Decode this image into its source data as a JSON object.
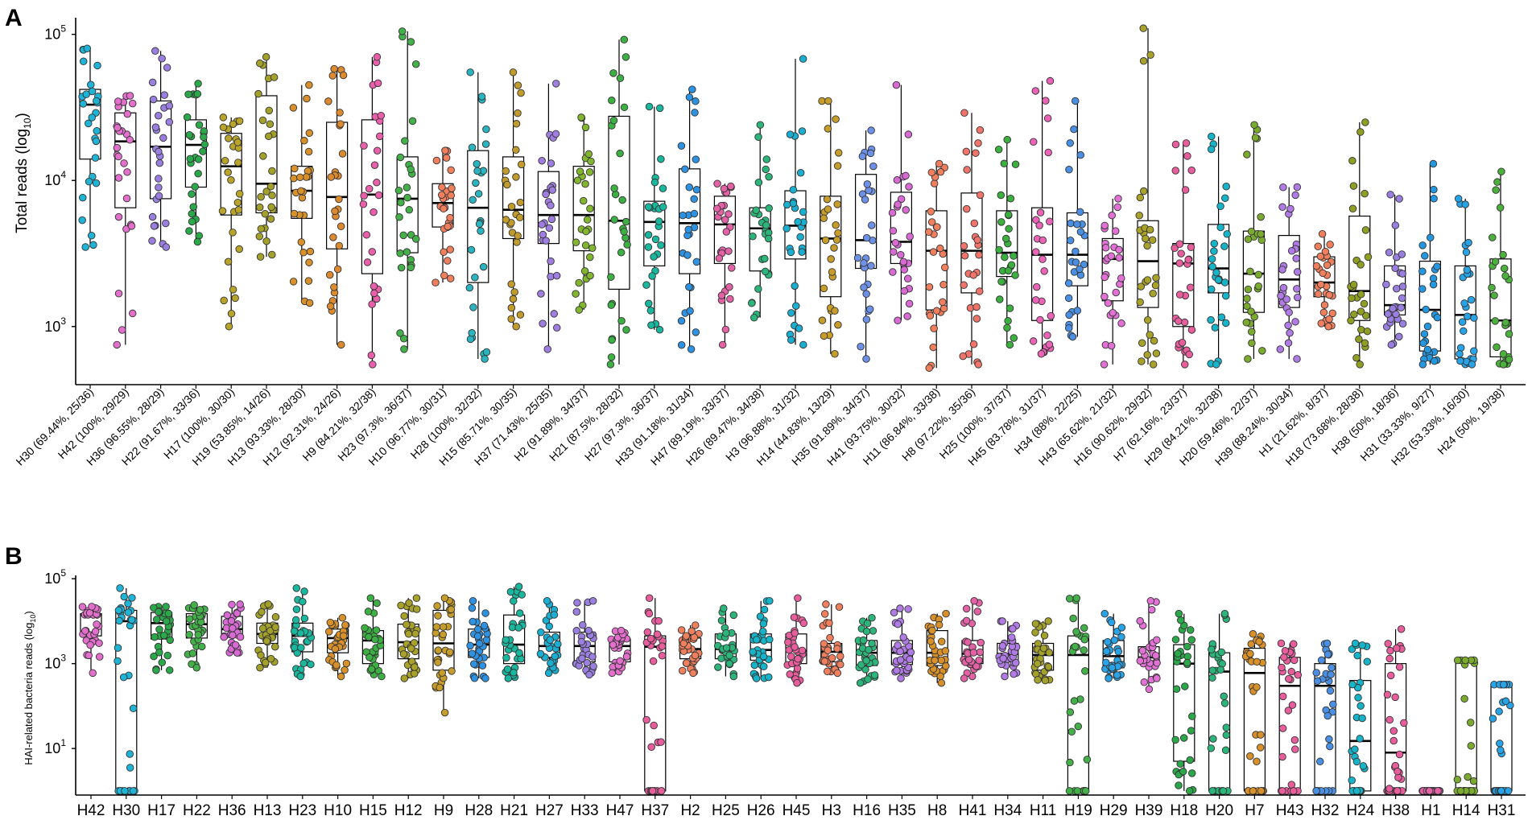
{
  "figure": {
    "panels": [
      "A",
      "B"
    ]
  },
  "chart_data": [
    {
      "panel": "A",
      "type": "box",
      "ylabel": "Total reads (log",
      "ylabel_sub": "10",
      "ylabel_tail": ")",
      "yscale": "log10",
      "ylim": [
        400,
        130000
      ],
      "yticks": [
        {
          "value": 1000,
          "base": "10",
          "exp": "3"
        },
        {
          "value": 10000,
          "base": "10",
          "exp": "4"
        },
        {
          "value": 100000,
          "base": "10",
          "exp": "5"
        }
      ],
      "categories": [
        "H30 (69.44%, 25/36)",
        "H42 (100%, 29/29)",
        "H36 (96.55%, 28/29)",
        "H22 (91.67%, 33/36)",
        "H17 (100%, 30/30)",
        "H19 (53.85%, 14/26)",
        "H13 (93.33%, 28/30)",
        "H12 (92.31%, 24/26)",
        "H9 (84.21%, 32/38)",
        "H23 (97.3%, 36/37)",
        "H10 (96.77%, 30/31)",
        "H28 (100%, 32/32)",
        "H15 (85.71%, 30/35)",
        "H37 (71.43%, 25/35)",
        "H2 (91.89%, 34/37)",
        "H21 (87.5%, 28/32)",
        "H27 (97.3%, 36/37)",
        "H33 (91.18%, 31/34)",
        "H47 (89.19%, 33/37)",
        "H26 (89.47%, 34/38)",
        "H3 (96.88%, 31/32)",
        "H14 (44.83%, 13/29)",
        "H35 (91.89%, 34/37)",
        "H41 (93.75%, 30/32)",
        "H11 (86.84%, 33/38)",
        "H8 (97.22%, 35/36)",
        "H25 (100%, 37/37)",
        "H45 (83.78%, 31/37)",
        "H34 (88%, 22/25)",
        "H43 (65.62%, 21/32)",
        "H16 (90.62%, 29/32)",
        "H7 (62.16%, 23/37)",
        "H29 (84.21%, 32/38)",
        "H20 (59.46%, 22/37)",
        "H39 (88.24%, 30/34)",
        "H1 (21.62%, 8/37)",
        "H18 (73.68%, 28/38)",
        "H38 (50%, 18/36)",
        "H31 (33.33%, 9/27)",
        "H32 (53.33%, 16/30)",
        "H24 (50%, 19/38)"
      ],
      "colors": [
        "#1fb3d6",
        "#e36fcc",
        "#9a7fe0",
        "#2aa84a",
        "#b8a42a",
        "#a4a12b",
        "#d8912a",
        "#dc8a30",
        "#ea5fab",
        "#43b04a",
        "#f07f5e",
        "#29b4c0",
        "#c19b2b",
        "#a07de0",
        "#82b62f",
        "#3db044",
        "#18b79e",
        "#2e92e2",
        "#e362a6",
        "#2bb57a",
        "#1aaed0",
        "#c69d2a",
        "#6e91e8",
        "#d86ad3",
        "#f07f5e",
        "#f0746a",
        "#3bb03f",
        "#eb63b6",
        "#4a8fe2",
        "#e271d6",
        "#a8a12a",
        "#e85d9c",
        "#16b4c8",
        "#7bab2e",
        "#b07be4",
        "#f07f5e",
        "#8f9f24",
        "#9a7fe0",
        "#2397e0",
        "#28a3e6",
        "#4cb03d"
      ],
      "series": [
        {
          "q1": 14000,
          "median": 33000,
          "q3": 42000,
          "whisker_low": 3500,
          "whisker_high": 80000
        },
        {
          "q1": 6500,
          "median": 18500,
          "q3": 29000,
          "whisker_low": 750,
          "whisker_high": 38000
        },
        {
          "q1": 7500,
          "median": 17000,
          "q3": 35000,
          "whisker_low": 3500,
          "whisker_high": 77000
        },
        {
          "q1": 9000,
          "median": 17500,
          "q3": 26000,
          "whisker_low": 3800,
          "whisker_high": 46000
        },
        {
          "q1": 5800,
          "median": 12500,
          "q3": 21000,
          "whisker_low": 1000,
          "whisker_high": 27000
        },
        {
          "q1": 6000,
          "median": 9500,
          "q3": 38000,
          "whisker_low": 3000,
          "whisker_high": 70000
        },
        {
          "q1": 5500,
          "median": 8500,
          "q3": 12500,
          "whisker_low": 1450,
          "whisker_high": 45000
        },
        {
          "q1": 3400,
          "median": 7700,
          "q3": 25000,
          "whisker_low": 750,
          "whisker_high": 58000
        },
        {
          "q1": 2300,
          "median": 8000,
          "q3": 26000,
          "whisker_low": 550,
          "whisker_high": 70000
        },
        {
          "q1": 3200,
          "median": 7500,
          "q3": 14500,
          "whisker_low": 700,
          "whisker_high": 105000
        },
        {
          "q1": 4800,
          "median": 7000,
          "q3": 9500,
          "whisker_low": 2000,
          "whisker_high": 16000
        },
        {
          "q1": 2000,
          "median": 6500,
          "q3": 16000,
          "whisker_low": 600,
          "whisker_high": 55000
        },
        {
          "q1": 4000,
          "median": 6300,
          "q3": 14500,
          "whisker_low": 1000,
          "whisker_high": 55000
        },
        {
          "q1": 3700,
          "median": 5800,
          "q3": 11500,
          "whisker_low": 700,
          "whisker_high": 46000
        },
        {
          "q1": 3300,
          "median": 5800,
          "q3": 12500,
          "whisker_low": 1300,
          "whisker_high": 27000
        },
        {
          "q1": 1800,
          "median": 5300,
          "q3": 27500,
          "whisker_low": 550,
          "whisker_high": 92000
        },
        {
          "q1": 2600,
          "median": 5200,
          "q3": 7200,
          "whisker_low": 950,
          "whisker_high": 32000
        },
        {
          "q1": 2300,
          "median": 5100,
          "q3": 12000,
          "whisker_low": 700,
          "whisker_high": 42000
        },
        {
          "q1": 2700,
          "median": 5000,
          "q3": 7800,
          "whisker_low": 750,
          "whisker_high": 9500
        },
        {
          "q1": 2400,
          "median": 4700,
          "q3": 6500,
          "whisker_low": 1150,
          "whisker_high": 24000
        },
        {
          "q1": 2900,
          "median": 4900,
          "q3": 8500,
          "whisker_low": 750,
          "whisker_high": 68000
        },
        {
          "q1": 1600,
          "median": 4000,
          "q3": 7800,
          "whisker_low": 650,
          "whisker_high": 35000
        },
        {
          "q1": 2500,
          "median": 3900,
          "q3": 11000,
          "whisker_low": 600,
          "whisker_high": 22000
        },
        {
          "q1": 2700,
          "median": 3800,
          "q3": 8300,
          "whisker_low": 1100,
          "whisker_high": 45000
        },
        {
          "q1": 1300,
          "median": 3300,
          "q3": 6200,
          "whisker_low": 520,
          "whisker_high": 13000
        },
        {
          "q1": 1700,
          "median": 3300,
          "q3": 8200,
          "whisker_low": 550,
          "whisker_high": 29000
        },
        {
          "q1": 2200,
          "median": 3200,
          "q3": 6200,
          "whisker_low": 750,
          "whisker_high": 19000
        },
        {
          "q1": 1100,
          "median": 3100,
          "q3": 6500,
          "whisker_low": 650,
          "whisker_high": 48000
        },
        {
          "q1": 1900,
          "median": 3100,
          "q3": 6000,
          "whisker_low": 850,
          "whisker_high": 35000
        },
        {
          "q1": 1500,
          "median": 2900,
          "q3": 4000,
          "whisker_low": 550,
          "whisker_high": 7500
        },
        {
          "q1": 1350,
          "median": 2800,
          "q3": 5300,
          "whisker_low": 550,
          "whisker_high": 110000
        },
        {
          "q1": 1000,
          "median": 2700,
          "q3": 3700,
          "whisker_low": 550,
          "whisker_high": 18000
        },
        {
          "q1": 1700,
          "median": 2500,
          "q3": 5000,
          "whisker_low": 550,
          "whisker_high": 20000
        },
        {
          "q1": 1250,
          "median": 2300,
          "q3": 4500,
          "whisker_low": 600,
          "whisker_high": 24000
        },
        {
          "q1": 1350,
          "median": 2100,
          "q3": 4200,
          "whisker_low": 600,
          "whisker_high": 9000
        },
        {
          "q1": 1600,
          "median": 2000,
          "q3": 3000,
          "whisker_low": 1000,
          "whisker_high": 4300
        },
        {
          "q1": 1100,
          "median": 1750,
          "q3": 5700,
          "whisker_low": 550,
          "whisker_high": 25000
        },
        {
          "q1": 1200,
          "median": 1400,
          "q3": 2600,
          "whisker_low": 750,
          "whisker_high": 8000
        },
        {
          "q1": 680,
          "median": 1300,
          "q3": 2800,
          "whisker_low": 550,
          "whisker_high": 13000
        },
        {
          "q1": 600,
          "median": 1200,
          "q3": 2600,
          "whisker_low": 550,
          "whisker_high": 7500
        },
        {
          "q1": 620,
          "median": 1100,
          "q3": 2900,
          "whisker_low": 550,
          "whisker_high": 11500
        }
      ]
    },
    {
      "panel": "B",
      "type": "box",
      "ylabel": "HAI-related bacteria reads (log",
      "ylabel_sub": "10",
      "ylabel_tail": ")",
      "yscale": "log10",
      "ylim": [
        0.8,
        120000
      ],
      "yticks": [
        {
          "value": 10,
          "base": "10",
          "exp": "1"
        },
        {
          "value": 1000,
          "base": "10",
          "exp": "3"
        },
        {
          "value": 100000,
          "base": "10",
          "exp": "5"
        }
      ],
      "categories": [
        "H42",
        "H30",
        "H17",
        "H22",
        "H36",
        "H13",
        "H23",
        "H10",
        "H15",
        "H12",
        "H9",
        "H28",
        "H21",
        "H27",
        "H33",
        "H47",
        "H37",
        "H2",
        "H25",
        "H26",
        "H45",
        "H3",
        "H16",
        "H35",
        "H8",
        "H41",
        "H34",
        "H11",
        "H19",
        "H29",
        "H39",
        "H18",
        "H20",
        "H7",
        "H43",
        "H32",
        "H24",
        "H38",
        "H1",
        "H14",
        "H31"
      ],
      "colors": [
        "#e36fcc",
        "#1fb3d6",
        "#2aa84a",
        "#43b04a",
        "#d86ad3",
        "#a4a12b",
        "#18b79e",
        "#d8912a",
        "#3db044",
        "#a8a12a",
        "#c69d2a",
        "#2e92e2",
        "#18b79e",
        "#1aaed0",
        "#9a7fe0",
        "#e36fcc",
        "#e85d9c",
        "#f07f5e",
        "#2bb57a",
        "#16b4c8",
        "#e85d9c",
        "#f07f5e",
        "#2bb57a",
        "#b07be4",
        "#d8912a",
        "#e362a6",
        "#b07be4",
        "#a4a12b",
        "#43b04a",
        "#28a3e6",
        "#e271d6",
        "#2aa84a",
        "#2bb57a",
        "#d8912a",
        "#e85d9c",
        "#4a8fe2",
        "#16b4c8",
        "#e85d9c",
        "#e362a6",
        "#7bab2e",
        "#28a3e6"
      ],
      "series": [
        {
          "q1": 4500,
          "median": 14000,
          "q3": 15000,
          "whisker_low": 600,
          "whisker_high": 22000
        },
        {
          "q1": 1,
          "median": 10000,
          "q3": 18000,
          "whisker_low": 1,
          "whisker_high": 60000
        },
        {
          "q1": 3800,
          "median": 9000,
          "q3": 16000,
          "whisker_low": 700,
          "whisker_high": 22000
        },
        {
          "q1": 4000,
          "median": 8500,
          "q3": 15000,
          "whisker_low": 800,
          "whisker_high": 24000
        },
        {
          "q1": 4200,
          "median": 6500,
          "q3": 13000,
          "whisker_low": 1800,
          "whisker_high": 25000
        },
        {
          "q1": 3000,
          "median": 5000,
          "q3": 9000,
          "whisker_low": 800,
          "whisker_high": 25000
        },
        {
          "q1": 1900,
          "median": 4500,
          "q3": 9000,
          "whisker_low": 500,
          "whisker_high": 60000
        },
        {
          "q1": 1800,
          "median": 4000,
          "q3": 6500,
          "whisker_low": 500,
          "whisker_high": 12000
        },
        {
          "q1": 1000,
          "median": 3500,
          "q3": 6000,
          "whisker_low": 500,
          "whisker_high": 35000
        },
        {
          "q1": 1300,
          "median": 3200,
          "q3": 8500,
          "whisker_low": 450,
          "whisker_high": 35000
        },
        {
          "q1": 700,
          "median": 3000,
          "q3": 18000,
          "whisker_low": 70,
          "whisker_high": 35000
        },
        {
          "q1": 1400,
          "median": 2800,
          "q3": 6500,
          "whisker_low": 450,
          "whisker_high": 30000
        },
        {
          "q1": 1000,
          "median": 2800,
          "q3": 14000,
          "whisker_low": 450,
          "whisker_high": 65000
        },
        {
          "q1": 1400,
          "median": 2600,
          "q3": 5500,
          "whisker_low": 600,
          "whisker_high": 30000
        },
        {
          "q1": 1100,
          "median": 2600,
          "q3": 5500,
          "whisker_low": 550,
          "whisker_high": 30000
        },
        {
          "q1": 1100,
          "median": 2600,
          "q3": 3800,
          "whisker_low": 600,
          "whisker_high": 6000
        },
        {
          "q1": 1,
          "median": 2500,
          "q3": 4500,
          "whisker_low": 1,
          "whisker_high": 35000
        },
        {
          "q1": 1300,
          "median": 2200,
          "q3": 4000,
          "whisker_low": 600,
          "whisker_high": 8000
        },
        {
          "q1": 1300,
          "median": 2200,
          "q3": 5000,
          "whisker_low": 500,
          "whisker_high": 20000
        },
        {
          "q1": 1200,
          "median": 2100,
          "q3": 5000,
          "whisker_low": 450,
          "whisker_high": 30000
        },
        {
          "q1": 1000,
          "median": 2000,
          "q3": 5000,
          "whisker_low": 350,
          "whisker_high": 35000
        },
        {
          "q1": 1100,
          "median": 1900,
          "q3": 3000,
          "whisker_low": 600,
          "whisker_high": 25000
        },
        {
          "q1": 900,
          "median": 1800,
          "q3": 3500,
          "whisker_low": 350,
          "whisker_high": 12000
        },
        {
          "q1": 950,
          "median": 1800,
          "q3": 3500,
          "whisker_low": 450,
          "whisker_high": 20000
        },
        {
          "q1": 900,
          "median": 1800,
          "q3": 6000,
          "whisker_low": 350,
          "whisker_high": 15000
        },
        {
          "q1": 1000,
          "median": 1700,
          "q3": 3500,
          "whisker_low": 450,
          "whisker_high": 30000
        },
        {
          "q1": 1100,
          "median": 1700,
          "q3": 3000,
          "whisker_low": 500,
          "whisker_high": 10000
        },
        {
          "q1": 700,
          "median": 1600,
          "q3": 3000,
          "whisker_low": 400,
          "whisker_high": 10000
        },
        {
          "q1": 1,
          "median": 1600,
          "q3": 4500,
          "whisker_low": 1,
          "whisker_high": 35000
        },
        {
          "q1": 800,
          "median": 1500,
          "q3": 3500,
          "whisker_low": 450,
          "whisker_high": 15000
        },
        {
          "q1": 1000,
          "median": 1400,
          "q3": 2500,
          "whisker_low": 250,
          "whisker_high": 30000
        },
        {
          "q1": 5,
          "median": 1000,
          "q3": 2800,
          "whisker_low": 1,
          "whisker_high": 15000
        },
        {
          "q1": 1,
          "median": 650,
          "q3": 1800,
          "whisker_low": 1,
          "whisker_high": 15000
        },
        {
          "q1": 1,
          "median": 600,
          "q3": 2300,
          "whisker_low": 1,
          "whisker_high": 5000
        },
        {
          "q1": 1,
          "median": 300,
          "q3": 1400,
          "whisker_low": 1,
          "whisker_high": 3000
        },
        {
          "q1": 1,
          "median": 300,
          "q3": 1000,
          "whisker_low": 1,
          "whisker_high": 3000
        },
        {
          "q1": 1,
          "median": 15,
          "q3": 400,
          "whisker_low": 1,
          "whisker_high": 3000
        },
        {
          "q1": 1,
          "median": 8,
          "q3": 1000,
          "whisker_low": 1,
          "whisker_high": 6500
        },
        {
          "q1": 1,
          "median": 1,
          "q3": 1,
          "whisker_low": 1,
          "whisker_high": 1
        },
        {
          "q1": 1,
          "median": 1,
          "q3": 1200,
          "whisker_low": 1,
          "whisker_high": 1200
        },
        {
          "q1": 1,
          "median": 1,
          "q3": 320,
          "whisker_low": 1,
          "whisker_high": 320
        }
      ]
    }
  ]
}
